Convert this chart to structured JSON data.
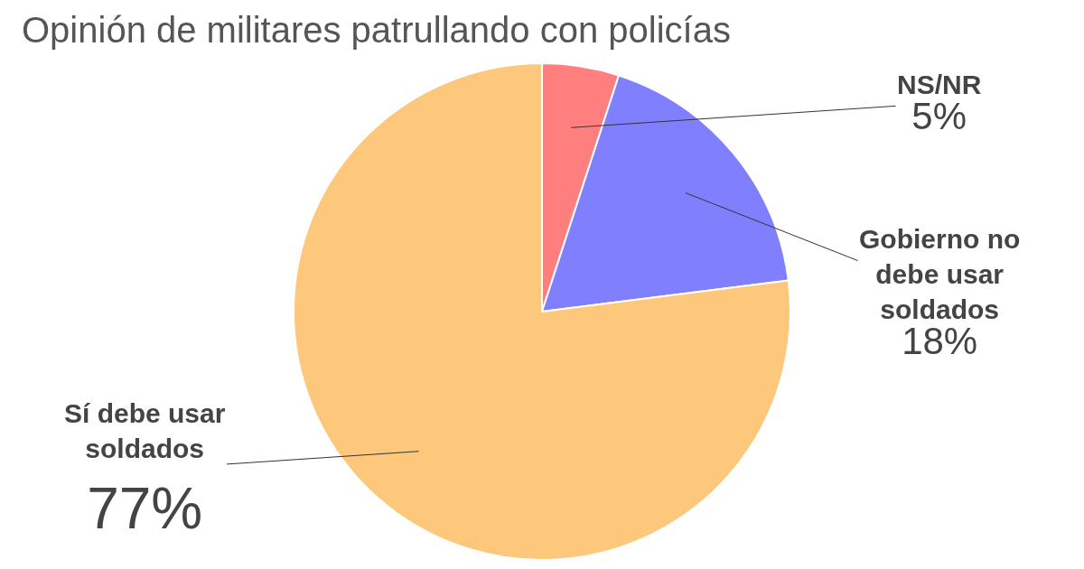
{
  "chart_data": {
    "type": "pie",
    "title": "Opinión de militares patrullando con policías",
    "categories": [
      "NS/NR",
      "Gobierno no debe usar soldados",
      "Sí debe usar soldados"
    ],
    "values": [
      5,
      18,
      77
    ],
    "colors": [
      "#ff7f7f",
      "#8080ff",
      "#fdc87c"
    ],
    "value_labels": [
      "5%",
      "18%",
      "77%"
    ],
    "legend": false
  }
}
